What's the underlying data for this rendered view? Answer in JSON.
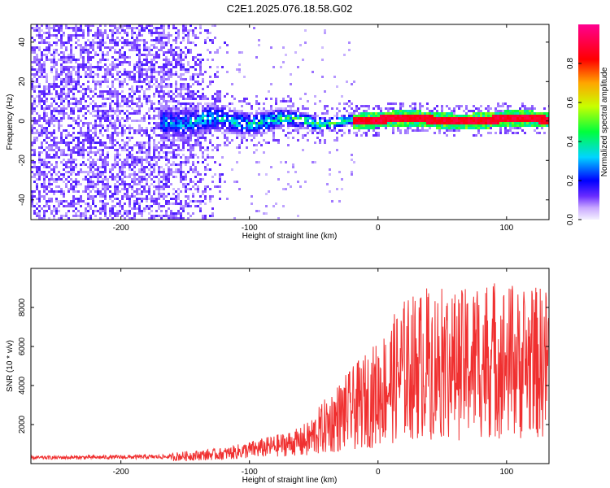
{
  "figure": {
    "title": "C2E1.2025.076.18.58.G02"
  },
  "chart_data": [
    {
      "type": "heatmap",
      "xlabel": "Height of straight line (km)",
      "ylabel": "Frequency (Hz)",
      "xlim": [
        -270,
        133
      ],
      "ylim": [
        -50,
        49
      ],
      "xticks": [
        "-200",
        "-100",
        "0",
        "100"
      ],
      "yticks": [
        "-40",
        "-20",
        "0",
        "20",
        "40"
      ],
      "colorbar": {
        "label": "Normalized spectral amplitude",
        "range": [
          0.0,
          1.0
        ],
        "ticks": [
          "0.0",
          "0.2",
          "0.4",
          "0.6",
          "0.8"
        ],
        "colors": [
          "#f4f0ff",
          "#6a2cff",
          "#0000ff",
          "#00d5ff",
          "#00ff3c",
          "#c8ff00",
          "#ffa500",
          "#ff0000",
          "#ff0090"
        ]
      },
      "features": [
        {
          "name": "broadband noise",
          "x_range": [
            -270,
            -125
          ],
          "freq_range": [
            -50,
            49
          ],
          "amplitude": 0.15
        },
        {
          "name": "converging signal",
          "x_range": [
            -170,
            -20
          ],
          "freq_center": 0,
          "freq_halfwidth_start": 10,
          "freq_halfwidth_end": 3,
          "amplitude_start": 0.3,
          "amplitude_end": 0.55
        },
        {
          "name": "narrow carrier",
          "x_range": [
            -20,
            133
          ],
          "freq_center": 0.5,
          "amplitude": 0.9
        }
      ],
      "grid": false,
      "legend": "colorbar-right"
    },
    {
      "type": "line",
      "xlabel": "Height of straight line (km)",
      "ylabel": "SNR (10 * v/v)",
      "xlim": [
        -270,
        133
      ],
      "ylim": [
        0,
        10000
      ],
      "xticks": [
        "-200",
        "-100",
        "0",
        "100"
      ],
      "yticks": [
        "2000",
        "4000",
        "6000",
        "8000"
      ],
      "color": "#f03030",
      "envelope_x": [
        -270,
        -160,
        -120,
        -80,
        -55,
        -35,
        -20,
        0,
        20,
        40,
        60,
        90,
        110,
        133
      ],
      "envelope_y": [
        300,
        350,
        500,
        900,
        1200,
        2200,
        2800,
        3600,
        4800,
        5200,
        5000,
        5400,
        5100,
        5200
      ],
      "grid": false,
      "legend": "none"
    }
  ]
}
